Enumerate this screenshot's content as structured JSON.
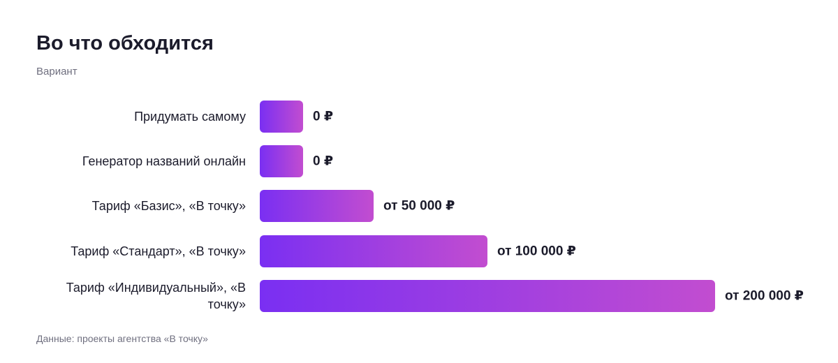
{
  "chart_data": {
    "type": "bar",
    "orientation": "horizontal",
    "title": "Во что обходится",
    "subtitle": "Вариант",
    "source": "Данные: проекты агентства «В точку»",
    "categories": [
      "Придумать самому",
      "Генератор названий онлайн",
      "Тариф «Базис», «В точку»",
      "Тариф «Стандарт», «В точку»",
      "Тариф «Индивидуальный», «В точку»"
    ],
    "values": [
      0,
      0,
      50000,
      100000,
      200000
    ],
    "value_labels": [
      "0 ₽",
      "0 ₽",
      "от 50 000 ₽",
      "от 100 000 ₽",
      "от 200 000 ₽"
    ],
    "xlim": [
      0,
      200000
    ],
    "colors": [
      "#7a2ff2",
      "#c24dd0"
    ]
  }
}
